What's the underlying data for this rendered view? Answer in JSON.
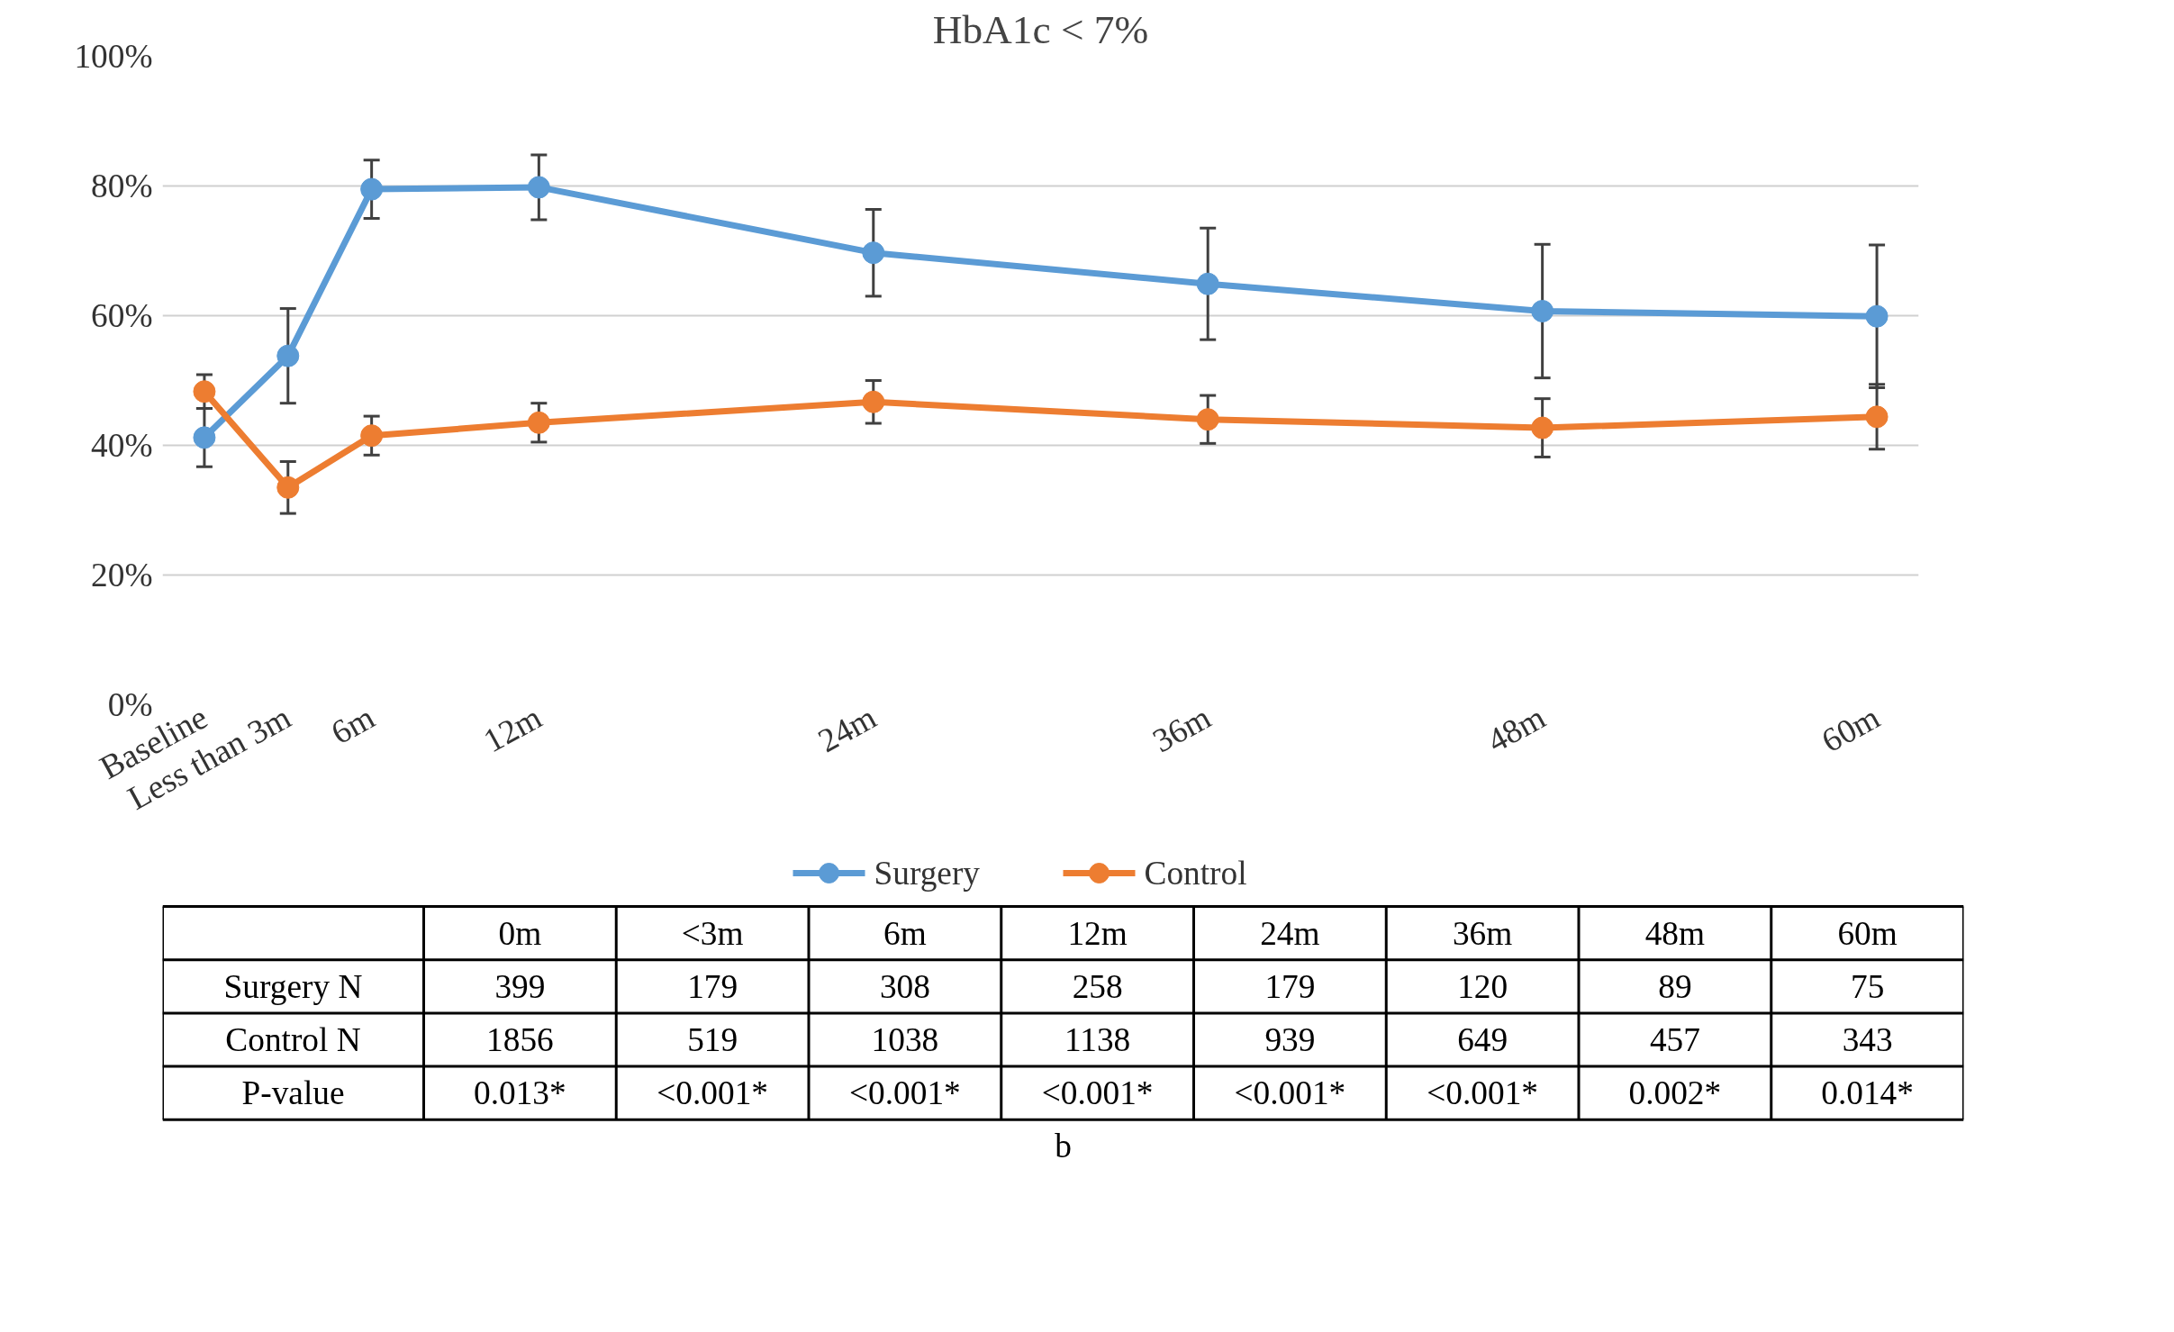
{
  "chart_data": {
    "type": "line",
    "title": "HbA1c < 7%",
    "x": [
      0,
      3,
      6,
      12,
      24,
      36,
      48,
      60
    ],
    "xlim": [
      -1.5,
      61.5
    ],
    "xticks": [
      {
        "value": 0,
        "label": "Baseline"
      },
      {
        "value": 3,
        "label": "Less than 3m"
      },
      {
        "value": 6,
        "label": "6m"
      },
      {
        "value": 12,
        "label": "12m"
      },
      {
        "value": 24,
        "label": "24m"
      },
      {
        "value": 36,
        "label": "36m"
      },
      {
        "value": 48,
        "label": "48m"
      },
      {
        "value": 60,
        "label": "60m"
      }
    ],
    "ylim": [
      0,
      100
    ],
    "yticks": [
      {
        "value": 0,
        "label": "0%"
      },
      {
        "value": 20,
        "label": "20%"
      },
      {
        "value": 40,
        "label": "40%"
      },
      {
        "value": 60,
        "label": "60%"
      },
      {
        "value": 80,
        "label": "80%"
      },
      {
        "value": 100,
        "label": "100%"
      }
    ],
    "series": [
      {
        "name": "Surgery",
        "color": "#5b9bd5",
        "values": [
          41.2,
          53.8,
          79.5,
          79.8,
          69.7,
          64.9,
          60.7,
          59.9
        ],
        "errors": [
          4.5,
          7.3,
          4.5,
          5,
          6.7,
          8.6,
          10.3,
          11
        ]
      },
      {
        "name": "Control",
        "color": "#ed7d31",
        "values": [
          48.3,
          33.5,
          41.5,
          43.5,
          46.7,
          44.0,
          42.7,
          44.4
        ],
        "errors": [
          2.6,
          4,
          3,
          3,
          3.3,
          3.7,
          4.5,
          5
        ]
      }
    ],
    "marker": "circle",
    "line_style": "solid",
    "grid": "y",
    "legend": "bottom",
    "annotations": [
      "0m",
      "<3m",
      "6m",
      "12m",
      "24m",
      "36m",
      "48m",
      "60m",
      "Surgery N",
      "399",
      "179",
      "308",
      "258",
      "179",
      "120",
      "89",
      "75",
      "Control N",
      "1856",
      "519",
      "1038",
      "1138",
      "939",
      "649",
      "457",
      "343",
      "P-value",
      "0.013*",
      "<0.001*",
      "<0.001*",
      "<0.001*",
      "<0.001*",
      "<0.001*",
      "0.002*",
      "0.014*",
      "b"
    ]
  }
}
